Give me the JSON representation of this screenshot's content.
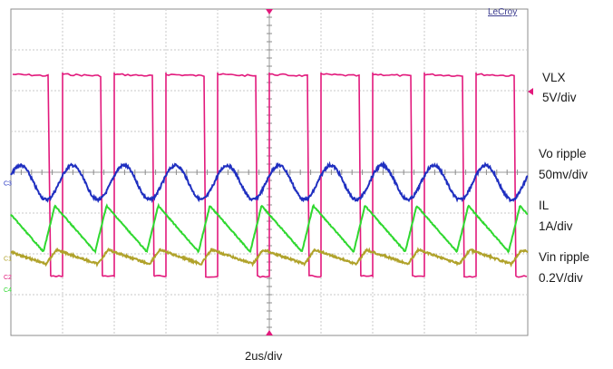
{
  "chart_data": {
    "type": "line",
    "title": "",
    "brand": "LeCroy",
    "timebase": "2us/div",
    "grid": true,
    "axes_range": {
      "x_divisions": 10,
      "y_divisions": 8
    },
    "period_divisions": 1,
    "series": [
      {
        "name": "VLX",
        "scale": "5V/div",
        "color": "#e2197c",
        "shape": "pulse",
        "channel_marker": "C2",
        "low_level": 1.45,
        "high_level": 6.4,
        "off_fraction": 0.23
      },
      {
        "name": "Vo ripple",
        "scale": "50mv/div",
        "color": "#1f2fc0",
        "shape": "sine",
        "channel_marker": "C3",
        "center": 3.75,
        "amplitude": 0.07
      },
      {
        "name": "IL",
        "scale": "1A/div",
        "color": "#2fd82f",
        "shape": "sawtooth",
        "channel_marker": "",
        "low": 2.05,
        "high": 3.18,
        "fall_fraction": 0.78
      },
      {
        "name": "Vin ripple",
        "scale": "0.2V/div",
        "color": "#b0a22a",
        "shape": "sawtooth",
        "channel_marker": "C1",
        "low": 1.75,
        "high": 2.1,
        "fall_fraction": 0.8
      }
    ],
    "zero_marker_green": "C4"
  }
}
